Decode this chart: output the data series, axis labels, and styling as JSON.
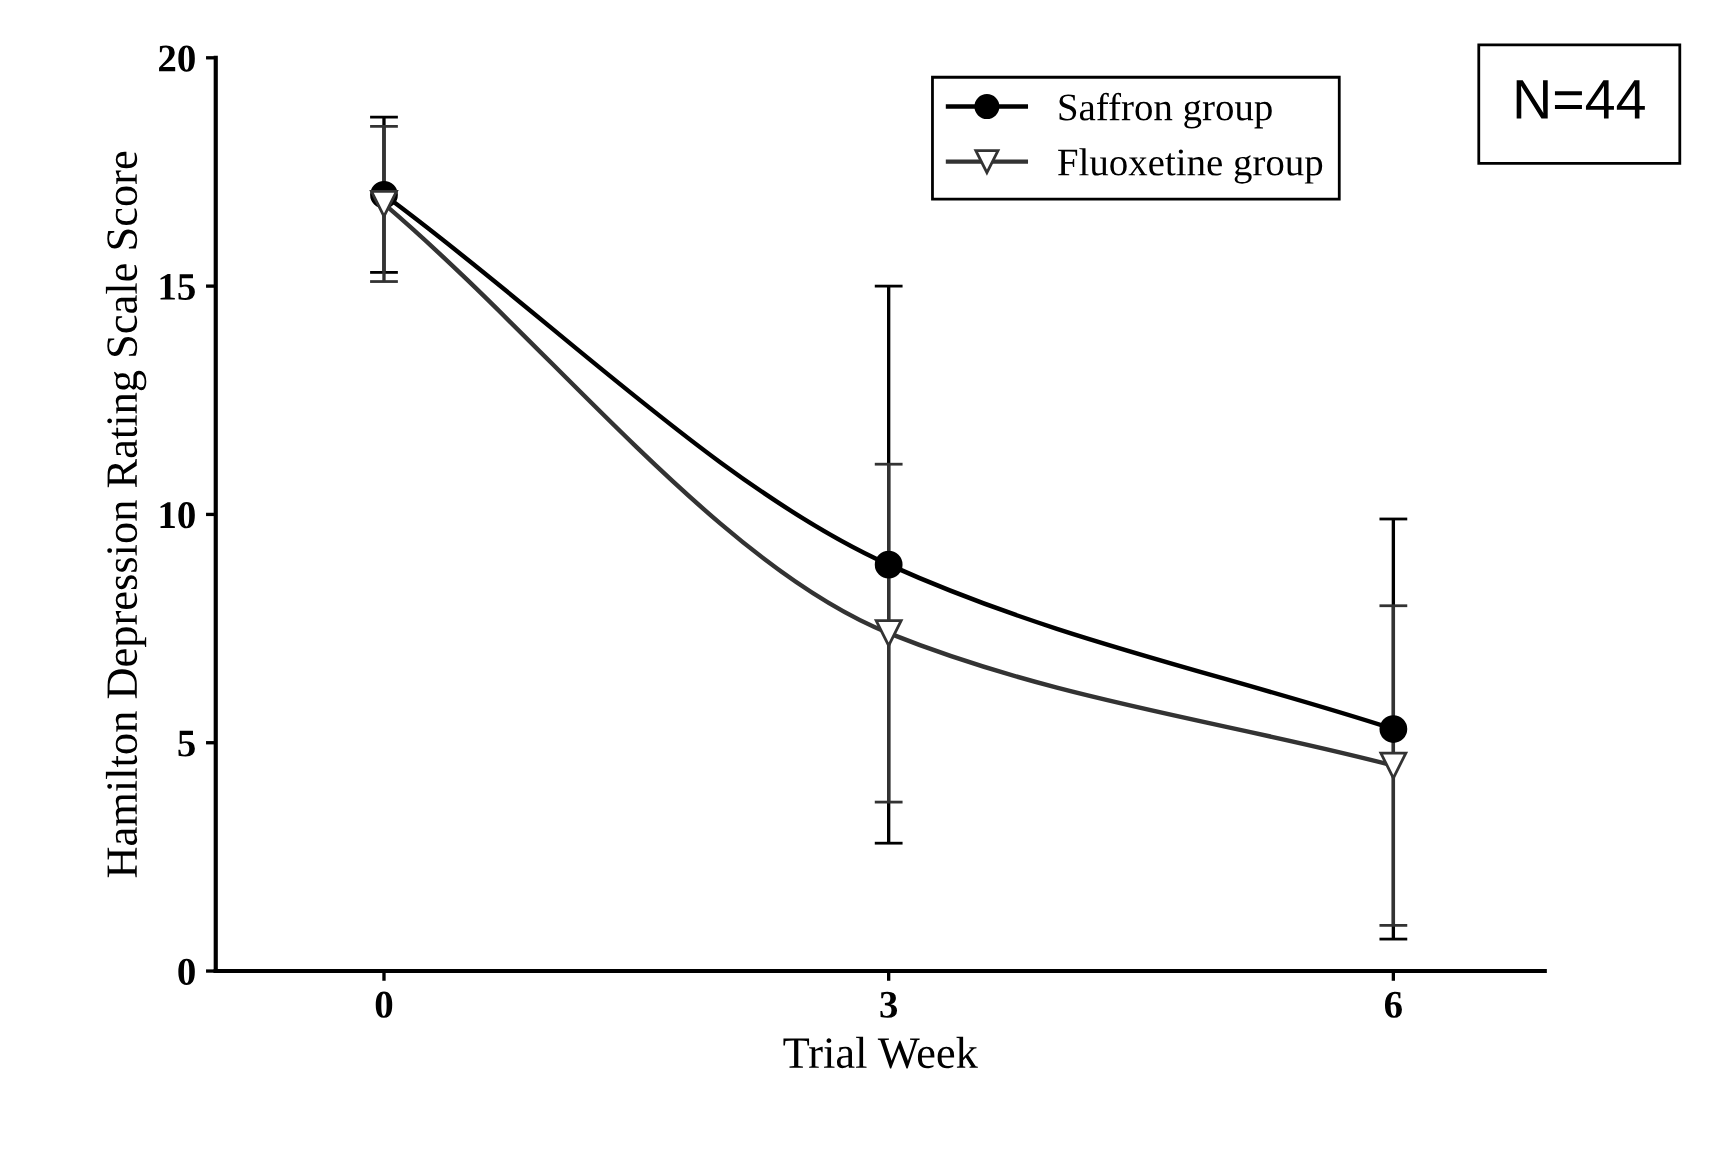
{
  "chart_data": {
    "type": "line",
    "xlabel": "Trial Week",
    "ylabel": "Hamilton Depression Rating Scale Score",
    "x": [
      0,
      3,
      6
    ],
    "xlim": [
      -1,
      6.9
    ],
    "xticks": [
      0,
      3,
      6
    ],
    "ylim": [
      0,
      20
    ],
    "yticks": [
      0,
      5,
      10,
      15,
      20
    ],
    "series": [
      {
        "name": "Saffron group",
        "color": "#000000",
        "marker": "circle",
        "values": [
          17.0,
          8.9,
          5.3
        ],
        "errors": [
          [
            15.3,
            18.7
          ],
          [
            2.8,
            15.0
          ],
          [
            0.7,
            9.9
          ]
        ]
      },
      {
        "name": "Fluoxetine group",
        "color": "#333333",
        "marker": "triangle",
        "values": [
          16.8,
          7.4,
          4.5
        ],
        "errors": [
          [
            15.1,
            18.5
          ],
          [
            3.7,
            11.1
          ],
          [
            1.0,
            8.0
          ]
        ]
      }
    ],
    "legend": "top right",
    "grid": false,
    "annotations": [
      "N=44"
    ]
  }
}
